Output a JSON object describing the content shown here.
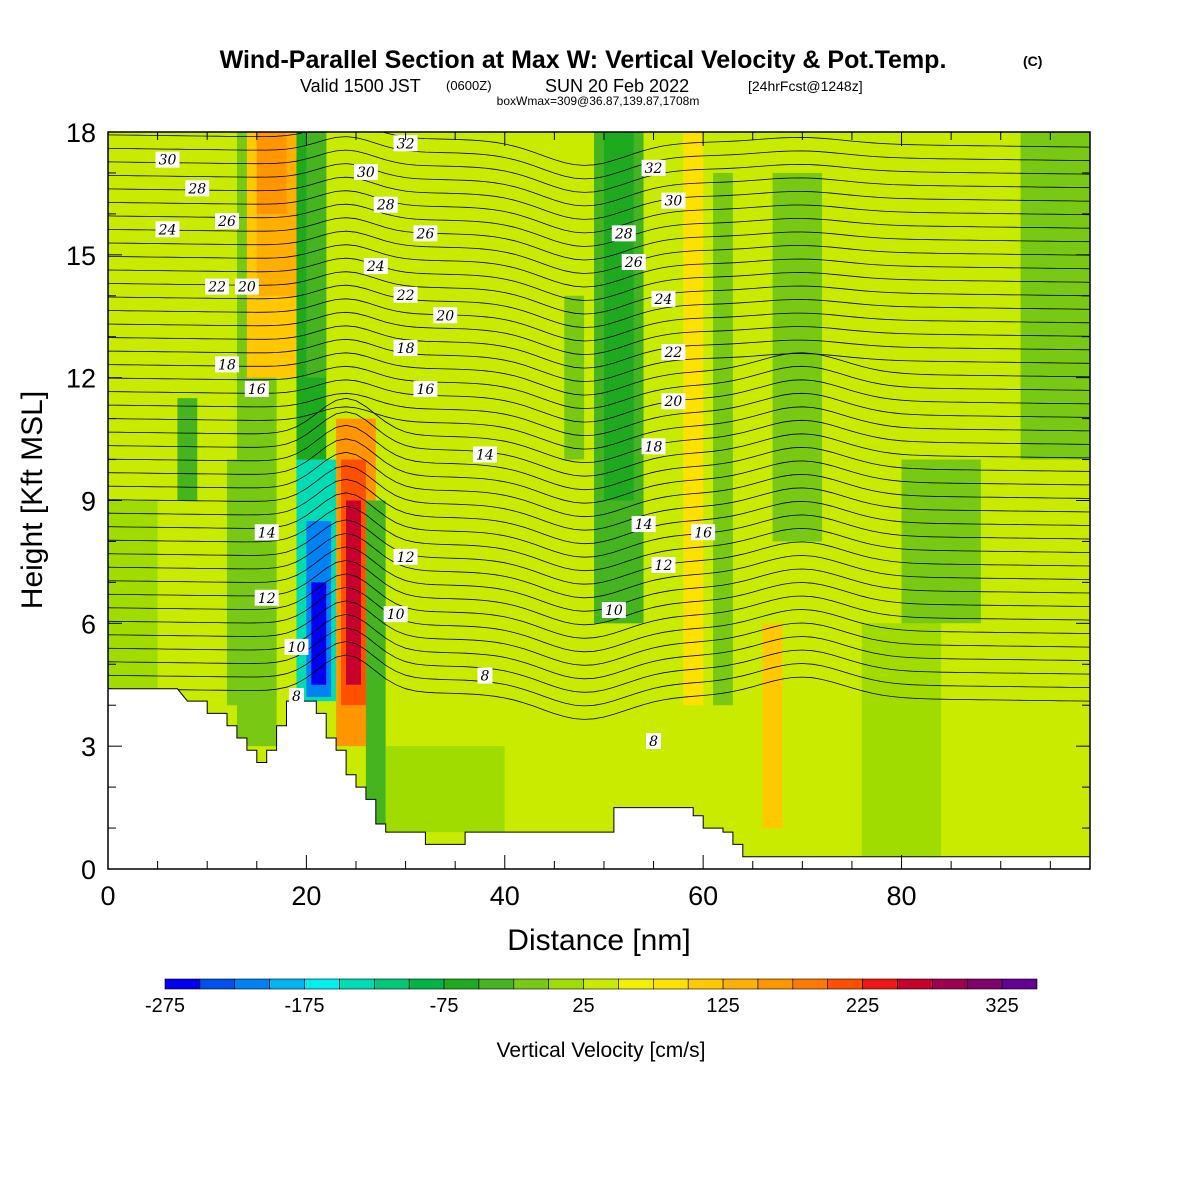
{
  "title": {
    "main": "Wind-Parallel Section at Max W: Vertical Velocity & Pot.Temp.",
    "mark": "(C)",
    "valid_prefix": "Valid 1500 JST",
    "valid_zulu": "(0600Z)",
    "valid_date": "SUN 20 Feb 2022",
    "forecast": "[24hrFcst@1248z]",
    "boxwmax": "boxWmax=309@36.87,139.87,1708m"
  },
  "chart_data": {
    "type": "heatmap",
    "xlabel": "Distance [nm]",
    "ylabel": "Height [Kft MSL]",
    "xlim": [
      0,
      99
    ],
    "ylim": [
      0,
      18
    ],
    "xticks": [
      0,
      20,
      40,
      60,
      80
    ],
    "yticks": [
      0,
      3,
      6,
      9,
      12,
      15,
      18
    ],
    "colorbar": {
      "label": "Vertical Velocity [cm/s]",
      "min": -275,
      "step": 25,
      "tick_labels": [
        "-275",
        "-175",
        "-75",
        "25",
        "125",
        "225",
        "325"
      ],
      "colors": [
        "#0000f0",
        "#0050f0",
        "#0082f5",
        "#00b4f5",
        "#00f0f0",
        "#00dcb4",
        "#00c878",
        "#00b446",
        "#1eaa1e",
        "#46b41e",
        "#78c814",
        "#a0dc00",
        "#c8eb00",
        "#f0f000",
        "#ffe100",
        "#ffc800",
        "#ffaf00",
        "#ff9600",
        "#ff7800",
        "#ff5000",
        "#f01414",
        "#c8002d",
        "#a00050",
        "#82006e",
        "#640096"
      ]
    },
    "terrain_kft": [
      [
        0,
        4.4
      ],
      [
        7,
        4.4
      ],
      [
        8,
        4.1
      ],
      [
        10,
        4.1
      ],
      [
        10,
        3.8
      ],
      [
        12,
        3.8
      ],
      [
        12,
        3.5
      ],
      [
        13,
        3.5
      ],
      [
        13,
        3.2
      ],
      [
        14,
        3.2
      ],
      [
        14,
        2.9
      ],
      [
        15,
        2.9
      ],
      [
        15,
        2.6
      ],
      [
        16,
        2.6
      ],
      [
        16,
        2.9
      ],
      [
        17,
        2.9
      ],
      [
        17,
        3.5
      ],
      [
        18,
        3.5
      ],
      [
        18,
        4.1
      ],
      [
        21,
        4.1
      ],
      [
        21,
        3.8
      ],
      [
        22,
        3.8
      ],
      [
        22,
        3.2
      ],
      [
        23,
        3.2
      ],
      [
        23,
        2.9
      ],
      [
        24,
        2.9
      ],
      [
        24,
        2.3
      ],
      [
        25,
        2.3
      ],
      [
        25,
        2.0
      ],
      [
        26,
        2.0
      ],
      [
        26,
        1.7
      ],
      [
        27,
        1.7
      ],
      [
        27,
        1.1
      ],
      [
        28,
        1.1
      ],
      [
        28,
        0.9
      ],
      [
        32,
        0.9
      ],
      [
        32,
        0.6
      ],
      [
        36,
        0.6
      ],
      [
        36,
        0.9
      ],
      [
        51,
        0.9
      ],
      [
        51,
        1.5
      ],
      [
        59,
        1.5
      ],
      [
        59,
        1.3
      ],
      [
        60,
        1.3
      ],
      [
        60,
        1.0
      ],
      [
        62,
        1.0
      ],
      [
        62,
        0.9
      ],
      [
        63,
        0.9
      ],
      [
        63,
        0.6
      ],
      [
        64,
        0.6
      ],
      [
        64,
        0.3
      ],
      [
        99,
        0.3
      ]
    ],
    "cells": [
      {
        "x0": 0,
        "x1": 5,
        "y0": 4.4,
        "y1": 9,
        "v": 0
      },
      {
        "x0": 0,
        "x1": 14,
        "y0": 9,
        "y1": 18,
        "v": 25
      },
      {
        "x0": 13,
        "x1": 17,
        "y0": 3,
        "y1": 18,
        "v": -25
      },
      {
        "x0": 7,
        "x1": 9,
        "y0": 9,
        "y1": 11.5,
        "v": -50
      },
      {
        "x0": 12,
        "x1": 14,
        "y0": 4,
        "y1": 10,
        "v": -25
      },
      {
        "x0": 14,
        "x1": 19,
        "y0": 12,
        "y1": 18,
        "v": 100
      },
      {
        "x0": 15,
        "x1": 19,
        "y0": 14,
        "y1": 18,
        "v": 125
      },
      {
        "x0": 15,
        "x1": 18,
        "y0": 16,
        "y1": 18,
        "v": 150
      },
      {
        "x0": 19,
        "x1": 22,
        "y0": 9,
        "y1": 18,
        "v": -75
      },
      {
        "x0": 20,
        "x1": 22,
        "y0": 12,
        "y1": 18,
        "v": -50
      },
      {
        "x0": 19,
        "x1": 23,
        "y0": 4.1,
        "y1": 10,
        "v": -150
      },
      {
        "x0": 20,
        "x1": 22.5,
        "y0": 4.2,
        "y1": 8.5,
        "v": -225
      },
      {
        "x0": 20.5,
        "x1": 22,
        "y0": 4.5,
        "y1": 7,
        "v": -275
      },
      {
        "x0": 23,
        "x1": 27,
        "y0": 3,
        "y1": 11,
        "v": 150
      },
      {
        "x0": 23.5,
        "x1": 26,
        "y0": 4,
        "y1": 10,
        "v": 200
      },
      {
        "x0": 24,
        "x1": 25.5,
        "y0": 4.5,
        "y1": 9,
        "v": 250
      },
      {
        "x0": 26,
        "x1": 28,
        "y0": 0.9,
        "y1": 9,
        "v": -50
      },
      {
        "x0": 28,
        "x1": 40,
        "y0": 3,
        "y1": 18,
        "v": 25
      },
      {
        "x0": 28,
        "x1": 40,
        "y0": 0.9,
        "y1": 3,
        "v": 0
      },
      {
        "x0": 40,
        "x1": 50,
        "y0": 0.9,
        "y1": 18,
        "v": 25
      },
      {
        "x0": 46,
        "x1": 48,
        "y0": 10,
        "y1": 14,
        "v": -25
      },
      {
        "x0": 49,
        "x1": 54,
        "y0": 6,
        "y1": 18,
        "v": -50
      },
      {
        "x0": 50,
        "x1": 53,
        "y0": 9,
        "y1": 18,
        "v": -75
      },
      {
        "x0": 54,
        "x1": 62,
        "y0": 4,
        "y1": 18,
        "v": 25
      },
      {
        "x0": 58,
        "x1": 60,
        "y0": 4,
        "y1": 18,
        "v": 75
      },
      {
        "x0": 61,
        "x1": 63,
        "y0": 4,
        "y1": 17,
        "v": -25
      },
      {
        "x0": 66,
        "x1": 68,
        "y0": 1,
        "y1": 6,
        "v": 100
      },
      {
        "x0": 67,
        "x1": 72,
        "y0": 8,
        "y1": 17,
        "v": -25
      },
      {
        "x0": 72,
        "x1": 76,
        "y0": 5,
        "y1": 18,
        "v": 25
      },
      {
        "x0": 76,
        "x1": 84,
        "y0": 0.3,
        "y1": 6,
        "v": 0
      },
      {
        "x0": 80,
        "x1": 88,
        "y0": 6,
        "y1": 10,
        "v": -25
      },
      {
        "x0": 84,
        "x1": 92,
        "y0": 0.3,
        "y1": 6,
        "v": 25
      },
      {
        "x0": 92,
        "x1": 99,
        "y0": 10,
        "y1": 18,
        "v": -25
      },
      {
        "x0": 92,
        "x1": 99,
        "y0": 0.3,
        "y1": 10,
        "v": 25
      }
    ],
    "contour_labels": [
      {
        "text": "30",
        "x": 6,
        "y": 17.3
      },
      {
        "text": "28",
        "x": 9,
        "y": 16.6
      },
      {
        "text": "24",
        "x": 6,
        "y": 15.6
      },
      {
        "text": "26",
        "x": 12,
        "y": 15.8
      },
      {
        "text": "22",
        "x": 11,
        "y": 14.2
      },
      {
        "text": "20",
        "x": 14,
        "y": 14.2
      },
      {
        "text": "18",
        "x": 12,
        "y": 12.3
      },
      {
        "text": "16",
        "x": 15,
        "y": 11.7
      },
      {
        "text": "14",
        "x": 16,
        "y": 8.2
      },
      {
        "text": "12",
        "x": 16,
        "y": 6.6
      },
      {
        "text": "10",
        "x": 19,
        "y": 5.4
      },
      {
        "text": "8",
        "x": 19,
        "y": 4.2
      },
      {
        "text": "32",
        "x": 30,
        "y": 17.7
      },
      {
        "text": "30",
        "x": 26,
        "y": 17.0
      },
      {
        "text": "28",
        "x": 28,
        "y": 16.2
      },
      {
        "text": "26",
        "x": 32,
        "y": 15.5
      },
      {
        "text": "24",
        "x": 27,
        "y": 14.7
      },
      {
        "text": "22",
        "x": 30,
        "y": 14.0
      },
      {
        "text": "20",
        "x": 34,
        "y": 13.5
      },
      {
        "text": "18",
        "x": 30,
        "y": 12.7
      },
      {
        "text": "16",
        "x": 32,
        "y": 11.7
      },
      {
        "text": "14",
        "x": 38,
        "y": 10.1
      },
      {
        "text": "12",
        "x": 30,
        "y": 7.6
      },
      {
        "text": "10",
        "x": 29,
        "y": 6.2
      },
      {
        "text": "8",
        "x": 38,
        "y": 4.7
      },
      {
        "text": "32",
        "x": 55,
        "y": 17.1
      },
      {
        "text": "30",
        "x": 57,
        "y": 16.3
      },
      {
        "text": "28",
        "x": 52,
        "y": 15.5
      },
      {
        "text": "26",
        "x": 53,
        "y": 14.8
      },
      {
        "text": "24",
        "x": 56,
        "y": 13.9
      },
      {
        "text": "22",
        "x": 57,
        "y": 12.6
      },
      {
        "text": "20",
        "x": 57,
        "y": 11.4
      },
      {
        "text": "18",
        "x": 55,
        "y": 10.3
      },
      {
        "text": "14",
        "x": 54,
        "y": 8.4
      },
      {
        "text": "16",
        "x": 60,
        "y": 8.2
      },
      {
        "text": "12",
        "x": 56,
        "y": 7.4
      },
      {
        "text": "10",
        "x": 51,
        "y": 6.3
      },
      {
        "text": "8",
        "x": 55,
        "y": 3.1
      }
    ]
  }
}
